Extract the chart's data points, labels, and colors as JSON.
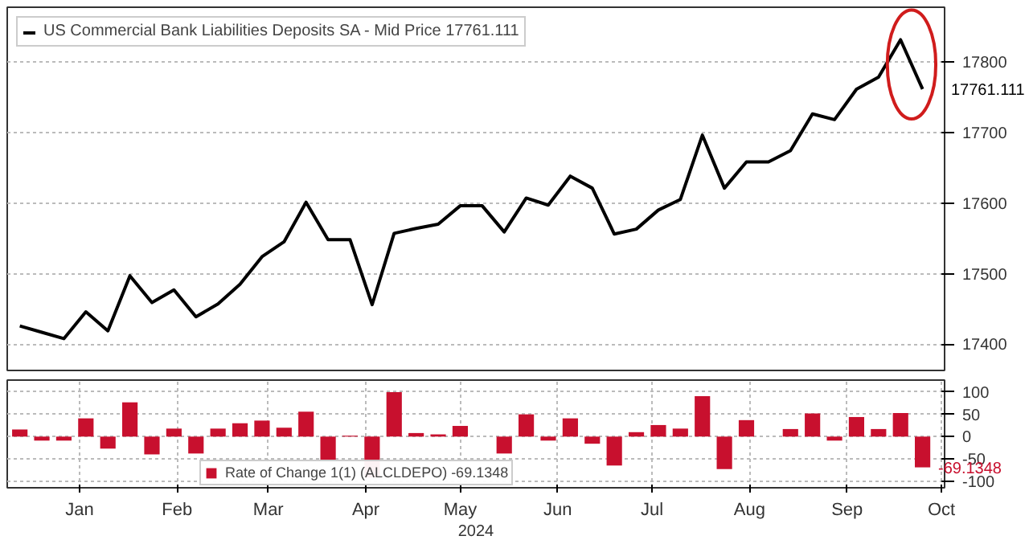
{
  "chart_data": [
    {
      "type": "line",
      "x": [
        "2023-12-13",
        "2023-12-20",
        "2023-12-27",
        "2024-01-03",
        "2024-01-10",
        "2024-01-17",
        "2024-01-24",
        "2024-01-31",
        "2024-02-07",
        "2024-02-14",
        "2024-02-21",
        "2024-02-28",
        "2024-03-06",
        "2024-03-13",
        "2024-03-20",
        "2024-03-27",
        "2024-04-03",
        "2024-04-10",
        "2024-04-17",
        "2024-04-24",
        "2024-05-01",
        "2024-05-08",
        "2024-05-15",
        "2024-05-22",
        "2024-05-29",
        "2024-06-05",
        "2024-06-12",
        "2024-06-19",
        "2024-06-26",
        "2024-07-03",
        "2024-07-10",
        "2024-07-17",
        "2024-07-24",
        "2024-07-31",
        "2024-08-07",
        "2024-08-14",
        "2024-08-21",
        "2024-08-28",
        "2024-09-04",
        "2024-09-11",
        "2024-09-18",
        "2024-09-25"
      ],
      "series": [
        {
          "name": "US Commercial Bank Liabilities Deposits SA - Mid Price 17761.111",
          "color": "#000000",
          "values": [
            17426,
            17417,
            17408,
            17446,
            17419,
            17497,
            17459,
            17477,
            17439,
            17457,
            17485,
            17524,
            17545,
            17601,
            17548,
            17548,
            17456,
            17557,
            17564,
            17570,
            17596,
            17596,
            17559,
            17607,
            17597,
            17638,
            17621,
            17556,
            17563,
            17590,
            17605,
            17696,
            17621,
            17658,
            17658,
            17674,
            17726,
            17718,
            17761,
            17778,
            17831,
            17761.111
          ]
        }
      ],
      "xlim": [
        "2023-12-09",
        "2024-10-02"
      ],
      "ylim": [
        17363,
        17877
      ],
      "yticks": [
        17400,
        17500,
        17600,
        17700,
        17800
      ],
      "grid": true,
      "legend": "top left",
      "tick_labels": "y",
      "line_style": "solid",
      "annotations": [
        "17761.111"
      ]
    },
    {
      "type": "bar",
      "x": [
        "2023-12-13",
        "2023-12-20",
        "2023-12-27",
        "2024-01-03",
        "2024-01-10",
        "2024-01-17",
        "2024-01-24",
        "2024-01-31",
        "2024-02-07",
        "2024-02-14",
        "2024-02-21",
        "2024-02-28",
        "2024-03-06",
        "2024-03-13",
        "2024-03-20",
        "2024-03-27",
        "2024-04-03",
        "2024-04-10",
        "2024-04-17",
        "2024-04-24",
        "2024-05-01",
        "2024-05-08",
        "2024-05-15",
        "2024-05-22",
        "2024-05-29",
        "2024-06-05",
        "2024-06-12",
        "2024-06-19",
        "2024-06-26",
        "2024-07-03",
        "2024-07-10",
        "2024-07-17",
        "2024-07-24",
        "2024-07-31",
        "2024-08-07",
        "2024-08-14",
        "2024-08-21",
        "2024-08-28",
        "2024-09-04",
        "2024-09-11",
        "2024-09-18",
        "2024-09-25"
      ],
      "series": [
        {
          "name": "Rate of Change 1(1) (ALCLDEPO) -69.1348",
          "color": "#c8102e",
          "values": [
            16,
            -9,
            -9,
            41,
            -27,
            77,
            -40,
            18,
            -38,
            18,
            30,
            36,
            20,
            56,
            -52,
            2,
            -92,
            100,
            8,
            5,
            24,
            0,
            -38,
            50,
            -9,
            41,
            -16,
            -65,
            10,
            26,
            18,
            91,
            -73,
            37,
            0,
            17,
            52,
            -9,
            44,
            17,
            53,
            -69.1348
          ]
        }
      ],
      "xlim": [
        "2023-12-09",
        "2024-10-02"
      ],
      "ylim": [
        -115,
        127
      ],
      "yticks": [
        -100,
        -50,
        0,
        50,
        100
      ],
      "xticks": [
        {
          "value": "2024-01-01",
          "label": "Jan"
        },
        {
          "value": "2024-02-01",
          "label": "Feb"
        },
        {
          "value": "2024-03-01",
          "label": "Mar"
        },
        {
          "value": "2024-04-01",
          "label": "Apr"
        },
        {
          "value": "2024-05-01",
          "label": "May"
        },
        {
          "value": "2024-06-01",
          "label": "Jun"
        },
        {
          "value": "2024-07-01",
          "label": "Jul"
        },
        {
          "value": "2024-08-01",
          "label": "Aug"
        },
        {
          "value": "2024-09-01",
          "label": "Sep"
        },
        {
          "value": "2024-10-01",
          "label": "Oct"
        }
      ],
      "xlabel": "2024",
      "grid": true,
      "legend": "bottom left",
      "annotations": [
        "-69.1348"
      ]
    }
  ]
}
